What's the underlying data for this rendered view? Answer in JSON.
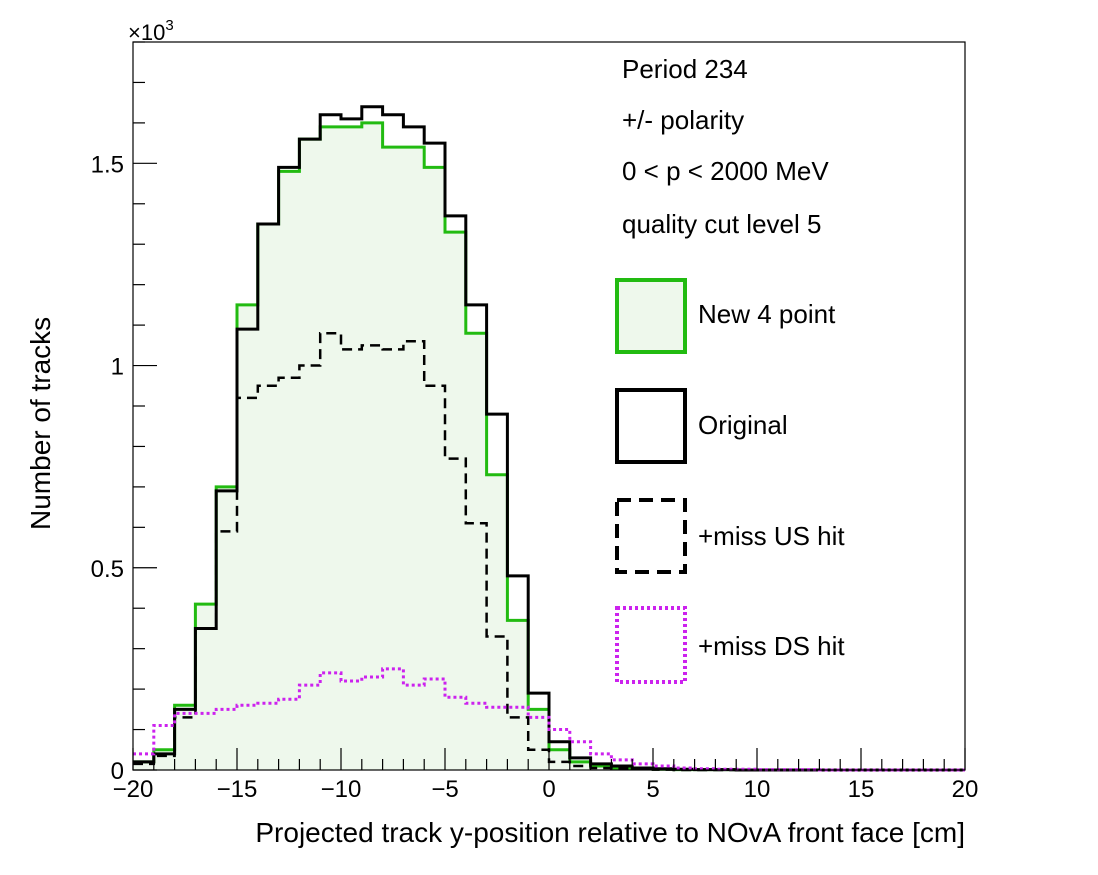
{
  "chart_data": {
    "type": "histogram",
    "title": "",
    "xlabel": "Projected track y-position relative to NOvA front face [cm]",
    "ylabel": "Number of tracks",
    "y_multiplier_label": "×10",
    "y_multiplier_exponent": "3",
    "xlim": [
      -20,
      20
    ],
    "ylim": [
      0,
      1800
    ],
    "x_ticks": [
      -20,
      -15,
      -10,
      -5,
      0,
      5,
      10,
      15,
      20
    ],
    "x_tick_labels": [
      "−20",
      "−15",
      "−10",
      "−5",
      "0",
      "5",
      "10",
      "15",
      "20"
    ],
    "y_ticks": [
      0,
      500,
      1000,
      1500
    ],
    "y_tick_labels": [
      "0",
      "0.5",
      "1",
      "1.5"
    ],
    "bin_edges_start": -20,
    "bin_width": 1,
    "info_lines": [
      "Period 234",
      "+/- polarity",
      "0 < p < 2000 MeV",
      "quality cut level 5"
    ],
    "legend_position": "right",
    "series": [
      {
        "name": "New 4 point",
        "style": "solid-filled",
        "color": "#22bb11",
        "fill": "#eef8ec",
        "values": [
          20,
          50,
          160,
          410,
          700,
          1150,
          1350,
          1480,
          1560,
          1590,
          1590,
          1600,
          1540,
          1540,
          1490,
          1330,
          1080,
          730,
          370,
          150,
          50,
          20,
          10,
          5,
          3,
          2,
          1,
          1,
          1,
          0,
          0,
          0,
          0,
          0,
          0,
          0,
          0,
          0,
          0,
          0
        ]
      },
      {
        "name": "Original",
        "style": "solid",
        "color": "#000000",
        "values": [
          20,
          40,
          150,
          350,
          690,
          1090,
          1350,
          1490,
          1560,
          1620,
          1610,
          1640,
          1620,
          1590,
          1550,
          1370,
          1150,
          880,
          480,
          190,
          70,
          30,
          15,
          10,
          5,
          3,
          2,
          1,
          1,
          0,
          0,
          0,
          0,
          0,
          0,
          0,
          0,
          0,
          0,
          0
        ]
      },
      {
        "name": "+miss US hit",
        "style": "dashed",
        "color": "#000000",
        "values": [
          15,
          35,
          130,
          350,
          590,
          920,
          950,
          970,
          1000,
          1080,
          1040,
          1050,
          1040,
          1060,
          950,
          770,
          610,
          330,
          130,
          50,
          20,
          10,
          5,
          3,
          2,
          1,
          0,
          0,
          0,
          0,
          0,
          0,
          0,
          0,
          0,
          0,
          0,
          0,
          0,
          0
        ]
      },
      {
        "name": "+miss DS hit",
        "style": "dotted",
        "color": "#cc22ee",
        "values": [
          40,
          110,
          140,
          140,
          150,
          160,
          165,
          175,
          210,
          240,
          220,
          230,
          250,
          210,
          225,
          180,
          165,
          155,
          155,
          130,
          100,
          70,
          40,
          25,
          15,
          10,
          5,
          3,
          2,
          2,
          1,
          1,
          1,
          0,
          0,
          0,
          0,
          0,
          0,
          0
        ]
      }
    ]
  }
}
